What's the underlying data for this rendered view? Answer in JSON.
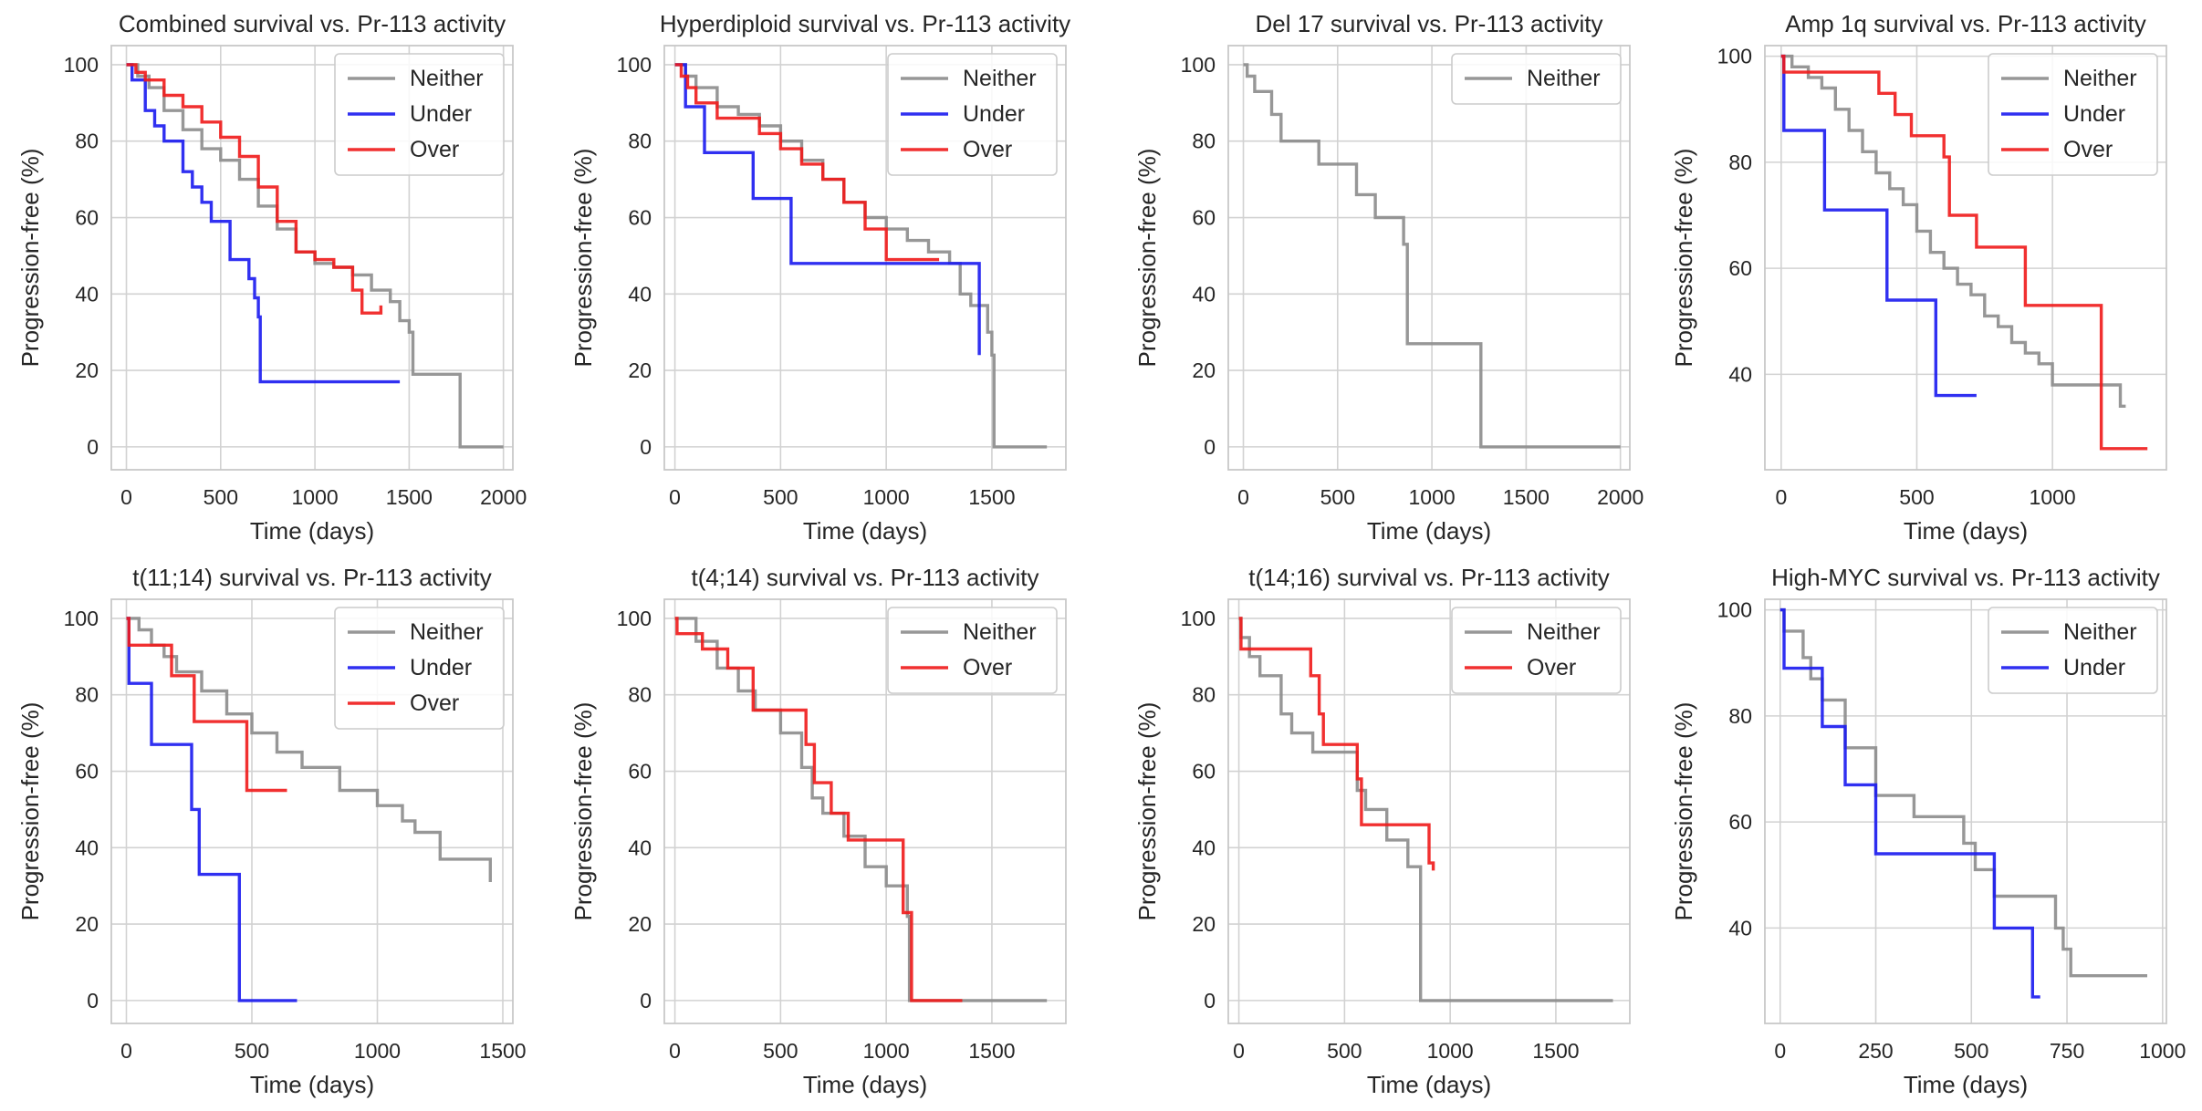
{
  "figure": {
    "colors": {
      "Neither": "#8c8c8c",
      "Under": "#1a1aef",
      "Over": "#ef1a1a",
      "grid": "#d2d2d2",
      "frame": "#c8c8c8"
    }
  },
  "chart_data": [
    {
      "type": "line",
      "title": "Combined survival vs. Pr-113 activity",
      "xlabel": "Time (days)",
      "ylabel": "Progression-free (%)",
      "xlim": [
        -80,
        2050
      ],
      "ylim": [
        -6,
        105
      ],
      "xticks": [
        0,
        500,
        1000,
        1500,
        2000
      ],
      "yticks": [
        0,
        20,
        40,
        60,
        80,
        100
      ],
      "legend": [
        "Neither",
        "Under",
        "Over"
      ],
      "legend_position": "top-right",
      "series": [
        {
          "name": "Neither",
          "x": [
            0,
            60,
            120,
            200,
            300,
            400,
            500,
            600,
            700,
            800,
            900,
            1000,
            1100,
            1200,
            1300,
            1400,
            1450,
            1500,
            1520,
            1600,
            1700,
            1760,
            1770,
            2000
          ],
          "y": [
            100,
            97,
            94,
            88,
            83,
            78,
            75,
            70,
            63,
            57,
            51,
            48,
            47,
            45,
            41,
            38,
            33,
            30,
            19,
            19,
            19,
            19,
            0,
            0
          ]
        },
        {
          "name": "Under",
          "x": [
            0,
            30,
            100,
            150,
            200,
            300,
            350,
            400,
            450,
            550,
            650,
            680,
            700,
            710,
            1450
          ],
          "y": [
            100,
            96,
            88,
            84,
            80,
            72,
            68,
            64,
            59,
            49,
            44,
            39,
            34,
            17,
            17
          ]
        },
        {
          "name": "Over",
          "x": [
            0,
            50,
            100,
            200,
            300,
            400,
            500,
            600,
            700,
            800,
            900,
            1000,
            1100,
            1200,
            1250,
            1300,
            1350
          ],
          "y": [
            100,
            98,
            96,
            92,
            89,
            85,
            81,
            76,
            68,
            59,
            51,
            49,
            47,
            41,
            35,
            35,
            37
          ]
        }
      ]
    },
    {
      "type": "line",
      "title": "Hyperdiploid survival vs. Pr-113 activity",
      "xlabel": "Time (days)",
      "ylabel": "Progression-free (%)",
      "xlim": [
        -50,
        1850
      ],
      "ylim": [
        -6,
        105
      ],
      "xticks": [
        0,
        500,
        1000,
        1500
      ],
      "yticks": [
        0,
        20,
        40,
        60,
        80,
        100
      ],
      "legend": [
        "Neither",
        "Under",
        "Over"
      ],
      "legend_position": "top-right",
      "series": [
        {
          "name": "Neither",
          "x": [
            0,
            50,
            100,
            200,
            300,
            400,
            500,
            600,
            700,
            800,
            900,
            1000,
            1100,
            1200,
            1300,
            1350,
            1400,
            1480,
            1500,
            1510,
            1760
          ],
          "y": [
            100,
            97,
            94,
            89,
            87,
            84,
            80,
            75,
            70,
            64,
            60,
            57,
            54,
            51,
            48,
            40,
            37,
            30,
            24,
            0,
            0
          ]
        },
        {
          "name": "Under",
          "x": [
            0,
            50,
            140,
            370,
            550,
            1440
          ],
          "y": [
            100,
            89,
            77,
            65,
            48,
            24
          ]
        },
        {
          "name": "Over",
          "x": [
            0,
            30,
            60,
            100,
            200,
            400,
            500,
            600,
            700,
            800,
            900,
            1000,
            1250
          ],
          "y": [
            100,
            97,
            94,
            90,
            86,
            82,
            78,
            74,
            70,
            64,
            57,
            49,
            49
          ]
        }
      ]
    },
    {
      "type": "line",
      "title": "Del 17 survival vs. Pr-113 activity",
      "xlabel": "Time (days)",
      "ylabel": "Progression-free (%)",
      "xlim": [
        -80,
        2050
      ],
      "ylim": [
        -6,
        105
      ],
      "xticks": [
        0,
        500,
        1000,
        1500,
        2000
      ],
      "yticks": [
        0,
        20,
        40,
        60,
        80,
        100
      ],
      "legend": [
        "Neither"
      ],
      "legend_position": "top-right",
      "series": [
        {
          "name": "Neither",
          "x": [
            0,
            20,
            60,
            150,
            200,
            400,
            600,
            700,
            850,
            870,
            1250,
            1260,
            2000
          ],
          "y": [
            100,
            97,
            93,
            87,
            80,
            74,
            66,
            60,
            53,
            27,
            27,
            0,
            0
          ]
        }
      ]
    },
    {
      "type": "line",
      "title": "Amp 1q survival vs. Pr-113 activity",
      "xlabel": "Time (days)",
      "ylabel": "Progression-free (%)",
      "xlim": [
        -60,
        1420
      ],
      "ylim": [
        22,
        102
      ],
      "xticks": [
        0,
        500,
        1000
      ],
      "yticks": [
        40,
        60,
        80,
        100
      ],
      "legend": [
        "Neither",
        "Under",
        "Over"
      ],
      "legend_position": "top-right",
      "series": [
        {
          "name": "Neither",
          "x": [
            0,
            40,
            100,
            150,
            200,
            250,
            300,
            350,
            400,
            450,
            500,
            550,
            600,
            650,
            700,
            750,
            800,
            850,
            900,
            950,
            1000,
            1200,
            1250,
            1270
          ],
          "y": [
            100,
            98,
            96,
            94,
            90,
            86,
            82,
            78,
            75,
            72,
            67,
            63,
            60,
            57,
            55,
            51,
            49,
            46,
            44,
            42,
            38,
            38,
            34,
            34
          ]
        },
        {
          "name": "Under",
          "x": [
            0,
            10,
            160,
            390,
            570,
            720
          ],
          "y": [
            100,
            86,
            71,
            54,
            36,
            36
          ]
        },
        {
          "name": "Over",
          "x": [
            0,
            10,
            330,
            360,
            420,
            480,
            550,
            600,
            620,
            720,
            900,
            1180,
            1350
          ],
          "y": [
            100,
            97,
            97,
            93,
            89,
            85,
            85,
            81,
            70,
            64,
            53,
            26,
            26
          ]
        }
      ]
    },
    {
      "type": "line",
      "title": "t(11;14) survival vs. Pr-113 activity",
      "xlabel": "Time (days)",
      "ylabel": "Progression-free (%)",
      "xlim": [
        -60,
        1540
      ],
      "ylim": [
        -6,
        105
      ],
      "xticks": [
        0,
        500,
        1000,
        1500
      ],
      "yticks": [
        0,
        20,
        40,
        60,
        80,
        100
      ],
      "legend": [
        "Neither",
        "Under",
        "Over"
      ],
      "legend_position": "top-right",
      "series": [
        {
          "name": "Neither",
          "x": [
            0,
            50,
            100,
            150,
            200,
            300,
            400,
            500,
            600,
            700,
            850,
            1000,
            1100,
            1150,
            1250,
            1450
          ],
          "y": [
            100,
            97,
            93,
            90,
            86,
            81,
            75,
            70,
            65,
            61,
            55,
            51,
            47,
            44,
            37,
            31
          ]
        },
        {
          "name": "Under",
          "x": [
            0,
            10,
            100,
            260,
            290,
            450,
            680
          ],
          "y": [
            100,
            83,
            67,
            50,
            33,
            0,
            0
          ]
        },
        {
          "name": "Over",
          "x": [
            0,
            10,
            180,
            270,
            480,
            640
          ],
          "y": [
            100,
            93,
            85,
            73,
            55,
            55
          ]
        }
      ]
    },
    {
      "type": "line",
      "title": "t(4;14) survival vs. Pr-113 activity",
      "xlabel": "Time (days)",
      "ylabel": "Progression-free (%)",
      "xlim": [
        -50,
        1850
      ],
      "ylim": [
        -6,
        105
      ],
      "xticks": [
        0,
        500,
        1000,
        1500
      ],
      "yticks": [
        0,
        20,
        40,
        60,
        80,
        100
      ],
      "legend": [
        "Neither",
        "Over"
      ],
      "legend_position": "top-right",
      "series": [
        {
          "name": "Neither",
          "x": [
            0,
            100,
            200,
            300,
            380,
            500,
            600,
            650,
            700,
            800,
            900,
            1000,
            1100,
            1110,
            1760
          ],
          "y": [
            100,
            94,
            87,
            81,
            76,
            70,
            61,
            53,
            49,
            43,
            35,
            30,
            22,
            0,
            0
          ]
        },
        {
          "name": "Over",
          "x": [
            0,
            10,
            130,
            250,
            370,
            620,
            660,
            740,
            820,
            1080,
            1120,
            1360
          ],
          "y": [
            100,
            96,
            92,
            87,
            76,
            67,
            57,
            49,
            42,
            23,
            0,
            0
          ]
        }
      ]
    },
    {
      "type": "line",
      "title": "t(14;16) survival vs. Pr-113 activity",
      "xlabel": "Time (days)",
      "ylabel": "Progression-free (%)",
      "xlim": [
        -50,
        1850
      ],
      "ylim": [
        -6,
        105
      ],
      "xticks": [
        0,
        500,
        1000,
        1500
      ],
      "yticks": [
        0,
        20,
        40,
        60,
        80,
        100
      ],
      "legend": [
        "Neither",
        "Over"
      ],
      "legend_position": "top-right",
      "series": [
        {
          "name": "Neither",
          "x": [
            0,
            10,
            50,
            100,
            200,
            250,
            350,
            560,
            600,
            700,
            800,
            850,
            860,
            1770
          ],
          "y": [
            100,
            95,
            90,
            85,
            75,
            70,
            65,
            55,
            50,
            42,
            35,
            35,
            0,
            0
          ]
        },
        {
          "name": "Over",
          "x": [
            0,
            10,
            340,
            380,
            400,
            560,
            580,
            900,
            920
          ],
          "y": [
            100,
            92,
            85,
            75,
            67,
            58,
            46,
            36,
            34
          ]
        }
      ]
    },
    {
      "type": "line",
      "title": "High-MYC survival vs. Pr-113 activity",
      "xlabel": "Time (days)",
      "ylabel": "Progression-free (%)",
      "xlim": [
        -40,
        1010
      ],
      "ylim": [
        22,
        102
      ],
      "xticks": [
        0,
        250,
        500,
        750,
        1000
      ],
      "yticks": [
        40,
        60,
        80,
        100
      ],
      "legend": [
        "Neither",
        "Under"
      ],
      "legend_position": "top-right",
      "series": [
        {
          "name": "Neither",
          "x": [
            0,
            10,
            60,
            80,
            110,
            170,
            250,
            350,
            480,
            510,
            560,
            720,
            740,
            760,
            960
          ],
          "y": [
            100,
            96,
            91,
            87,
            83,
            74,
            65,
            61,
            56,
            51,
            46,
            40,
            36,
            31,
            31
          ]
        },
        {
          "name": "Under",
          "x": [
            0,
            10,
            110,
            170,
            250,
            560,
            660,
            680
          ],
          "y": [
            100,
            89,
            78,
            67,
            54,
            40,
            27,
            27
          ]
        }
      ]
    }
  ]
}
